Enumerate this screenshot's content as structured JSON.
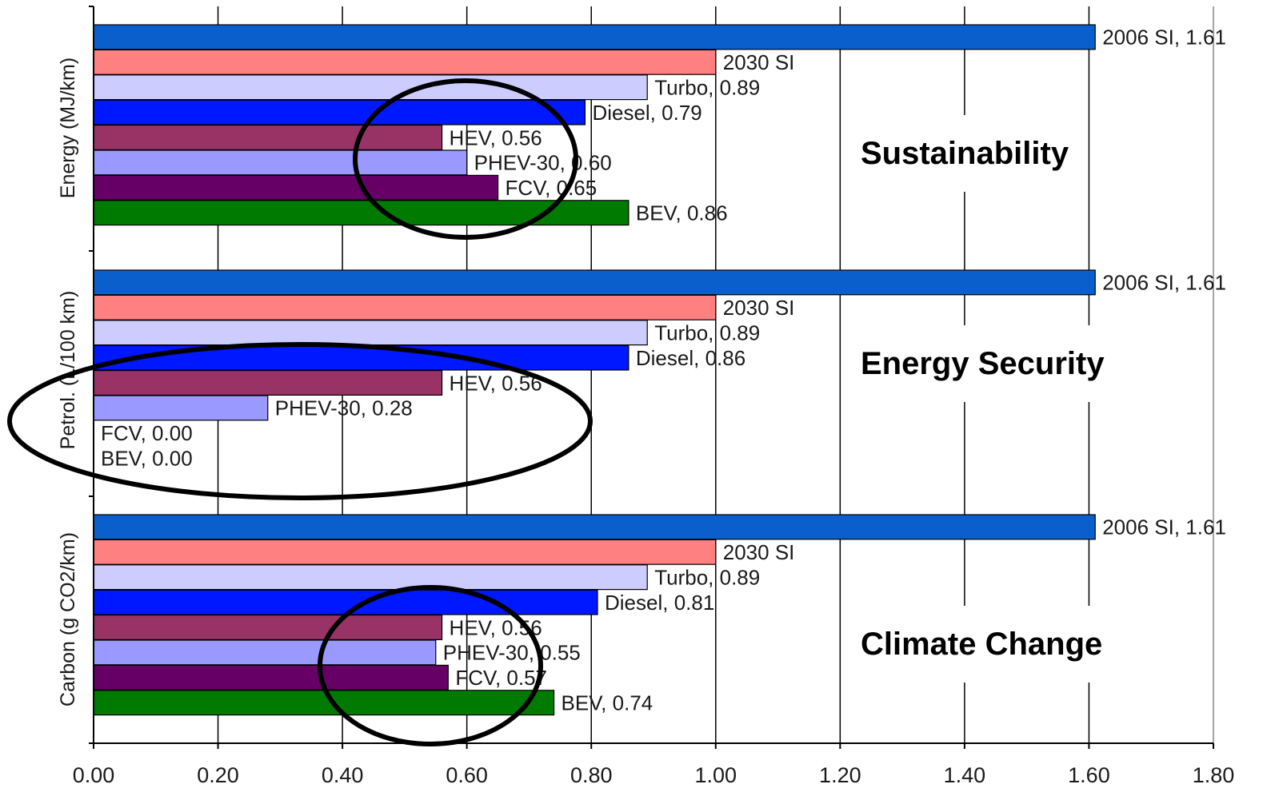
{
  "chart_data": {
    "type": "bar",
    "orientation": "horizontal",
    "xlim": [
      0,
      1.8
    ],
    "x_ticks": [
      "0.00",
      "0.20",
      "0.40",
      "0.60",
      "0.80",
      "1.00",
      "1.20",
      "1.40",
      "1.60",
      "1.80"
    ],
    "grid": "vertical",
    "colors": {
      "2006 SI": "#0a5fcc",
      "2030 SI": "#ff8080",
      "Turbo": "#ccccff",
      "Diesel": "#0018ff",
      "HEV": "#993366",
      "PHEV-30": "#9999ff",
      "FCV": "#660066",
      "BEV": "#007a00"
    },
    "panels": [
      {
        "ylabel": "Energy (MJ/km)",
        "annotation": "Sustainability",
        "bars": [
          {
            "category": "2006 SI",
            "value": 1.61,
            "label": "2006 SI, 1.61"
          },
          {
            "category": "2030 SI",
            "value": 1.0,
            "label": "2030 SI"
          },
          {
            "category": "Turbo",
            "value": 0.89,
            "label": "Turbo, 0.89"
          },
          {
            "category": "Diesel",
            "value": 0.79,
            "label": "Diesel, 0.79"
          },
          {
            "category": "HEV",
            "value": 0.56,
            "label": "HEV, 0.56"
          },
          {
            "category": "PHEV-30",
            "value": 0.6,
            "label": "PHEV-30, 0.60"
          },
          {
            "category": "FCV",
            "value": 0.65,
            "label": "FCV, 0.65"
          },
          {
            "category": "BEV",
            "value": 0.86,
            "label": "BEV, 0.86"
          }
        ]
      },
      {
        "ylabel": "Petrol. (L/100 km)",
        "annotation": "Energy Security",
        "bars": [
          {
            "category": "2006 SI",
            "value": 1.61,
            "label": "2006 SI, 1.61"
          },
          {
            "category": "2030 SI",
            "value": 1.0,
            "label": "2030 SI"
          },
          {
            "category": "Turbo",
            "value": 0.89,
            "label": "Turbo, 0.89"
          },
          {
            "category": "Diesel",
            "value": 0.86,
            "label": "Diesel, 0.86"
          },
          {
            "category": "HEV",
            "value": 0.56,
            "label": "HEV, 0.56"
          },
          {
            "category": "PHEV-30",
            "value": 0.28,
            "label": "PHEV-30, 0.28"
          },
          {
            "category": "FCV",
            "value": 0.0,
            "label": "FCV, 0.00"
          },
          {
            "category": "BEV",
            "value": 0.0,
            "label": "BEV, 0.00"
          }
        ]
      },
      {
        "ylabel": "Carbon (g CO2/km)",
        "annotation": "Climate Change",
        "bars": [
          {
            "category": "2006 SI",
            "value": 1.61,
            "label": "2006 SI, 1.61"
          },
          {
            "category": "2030 SI",
            "value": 1.0,
            "label": "2030 SI"
          },
          {
            "category": "Turbo",
            "value": 0.89,
            "label": "Turbo, 0.89"
          },
          {
            "category": "Diesel",
            "value": 0.81,
            "label": "Diesel, 0.81"
          },
          {
            "category": "HEV",
            "value": 0.56,
            "label": "HEV, 0.56"
          },
          {
            "category": "PHEV-30",
            "value": 0.55,
            "label": "PHEV-30, 0.55"
          },
          {
            "category": "FCV",
            "value": 0.57,
            "label": "FCV, 0.57"
          },
          {
            "category": "BEV",
            "value": 0.74,
            "label": "BEV, 0.74"
          }
        ]
      }
    ]
  }
}
